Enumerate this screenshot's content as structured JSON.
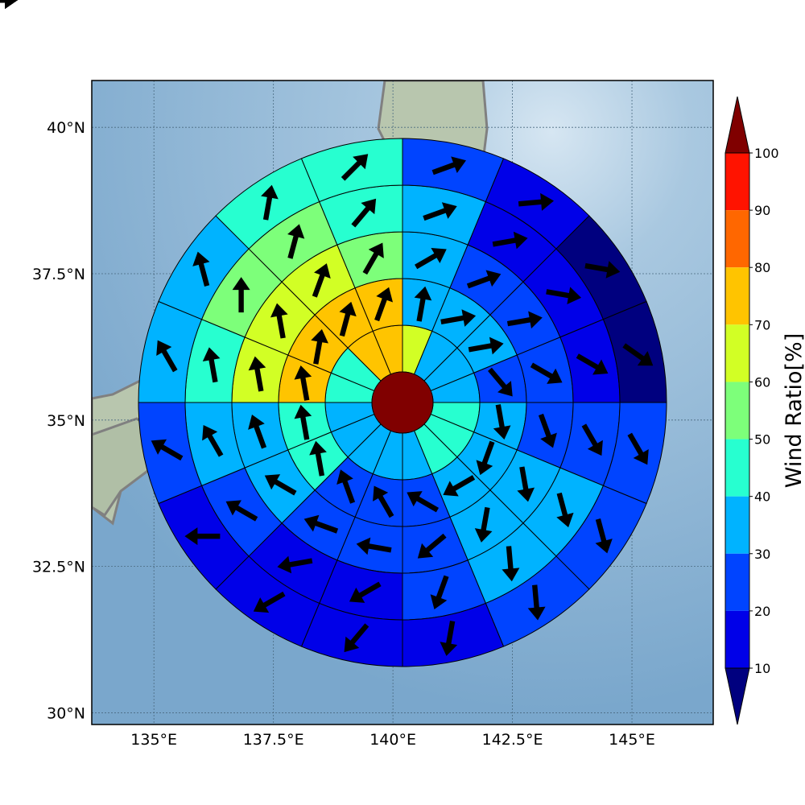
{
  "chart_data": {
    "type": "heatmap",
    "subtype": "polar-sector wind ratio map with wind direction arrows",
    "xlabel": "",
    "ylabel": "",
    "x_ticks": [
      {
        "value": 135,
        "label": "135°E"
      },
      {
        "value": 137.5,
        "label": "137.5°E"
      },
      {
        "value": 140,
        "label": "140°E"
      },
      {
        "value": 142.5,
        "label": "142.5°E"
      },
      {
        "value": 145,
        "label": "145°E"
      }
    ],
    "y_ticks": [
      {
        "value": 30,
        "label": "30°N"
      },
      {
        "value": 32.5,
        "label": "32.5°N"
      },
      {
        "value": 35,
        "label": "35°N"
      },
      {
        "value": 37.5,
        "label": "37.5°N"
      },
      {
        "value": 40,
        "label": "40°N"
      }
    ],
    "xlim": [
      133.7,
      146.7
    ],
    "ylim": [
      29.8,
      40.8
    ],
    "grid": true,
    "background": "shaded-relief map with coastlines",
    "center": {
      "lon": 140.2,
      "lat": 35.3,
      "value_range": "90-100"
    },
    "colorbar": {
      "label": "Wind Ratio[%]",
      "extend": "both",
      "levels": [
        10,
        20,
        30,
        40,
        50,
        60,
        70,
        80,
        90,
        100
      ],
      "tick_labels": [
        "10",
        "20",
        "30",
        "40",
        "50",
        "60",
        "70",
        "80",
        "90",
        "100"
      ],
      "colors": [
        "#00007f",
        "#0000e8",
        "#0044ff",
        "#00b3ff",
        "#27ffd0",
        "#7dff7a",
        "#d2ff25",
        "#ffc400",
        "#ff6700",
        "#ff1300",
        "#800000"
      ]
    },
    "sectors_clockwise_from_north": 16,
    "rings_inner_to_outer": 5,
    "ratio_bin_index_per_ring": [
      [
        6,
        3,
        3,
        3,
        4,
        4,
        4,
        3,
        3,
        3,
        3,
        3,
        4,
        4,
        7,
        7
      ],
      [
        3,
        3,
        3,
        2,
        3,
        3,
        3,
        2,
        2,
        2,
        4,
        4,
        7,
        7,
        7,
        7
      ],
      [
        3,
        2,
        2,
        2,
        2,
        3,
        3,
        2,
        2,
        2,
        3,
        3,
        6,
        6,
        6,
        5
      ],
      [
        3,
        1,
        1,
        1,
        2,
        3,
        3,
        2,
        1,
        1,
        2,
        3,
        4,
        5,
        5,
        4
      ],
      [
        2,
        1,
        0,
        0,
        2,
        2,
        2,
        1,
        1,
        1,
        1,
        2,
        3,
        3,
        4,
        4
      ]
    ],
    "arrow_direction_deg_per_ring": [
      [
        10,
        80,
        80,
        140,
        170,
        200,
        240,
        300,
        330,
        340,
        350,
        350,
        350,
        10,
        15,
        20
      ],
      [
        60,
        70,
        80,
        120,
        160,
        170,
        190,
        230,
        280,
        290,
        300,
        340,
        350,
        350,
        20,
        30
      ],
      [
        70,
        80,
        100,
        120,
        150,
        165,
        175,
        200,
        240,
        260,
        300,
        330,
        350,
        0,
        15,
        40
      ],
      [
        70,
        85,
        100,
        125,
        150,
        165,
        175,
        190,
        220,
        240,
        270,
        300,
        330,
        345,
        10,
        45
      ],
      [
        75,
        90,
        110,
        130,
        160,
        170,
        180,
        200,
        225,
        240,
        260,
        285,
        330,
        355,
        20,
        55
      ]
    ]
  }
}
